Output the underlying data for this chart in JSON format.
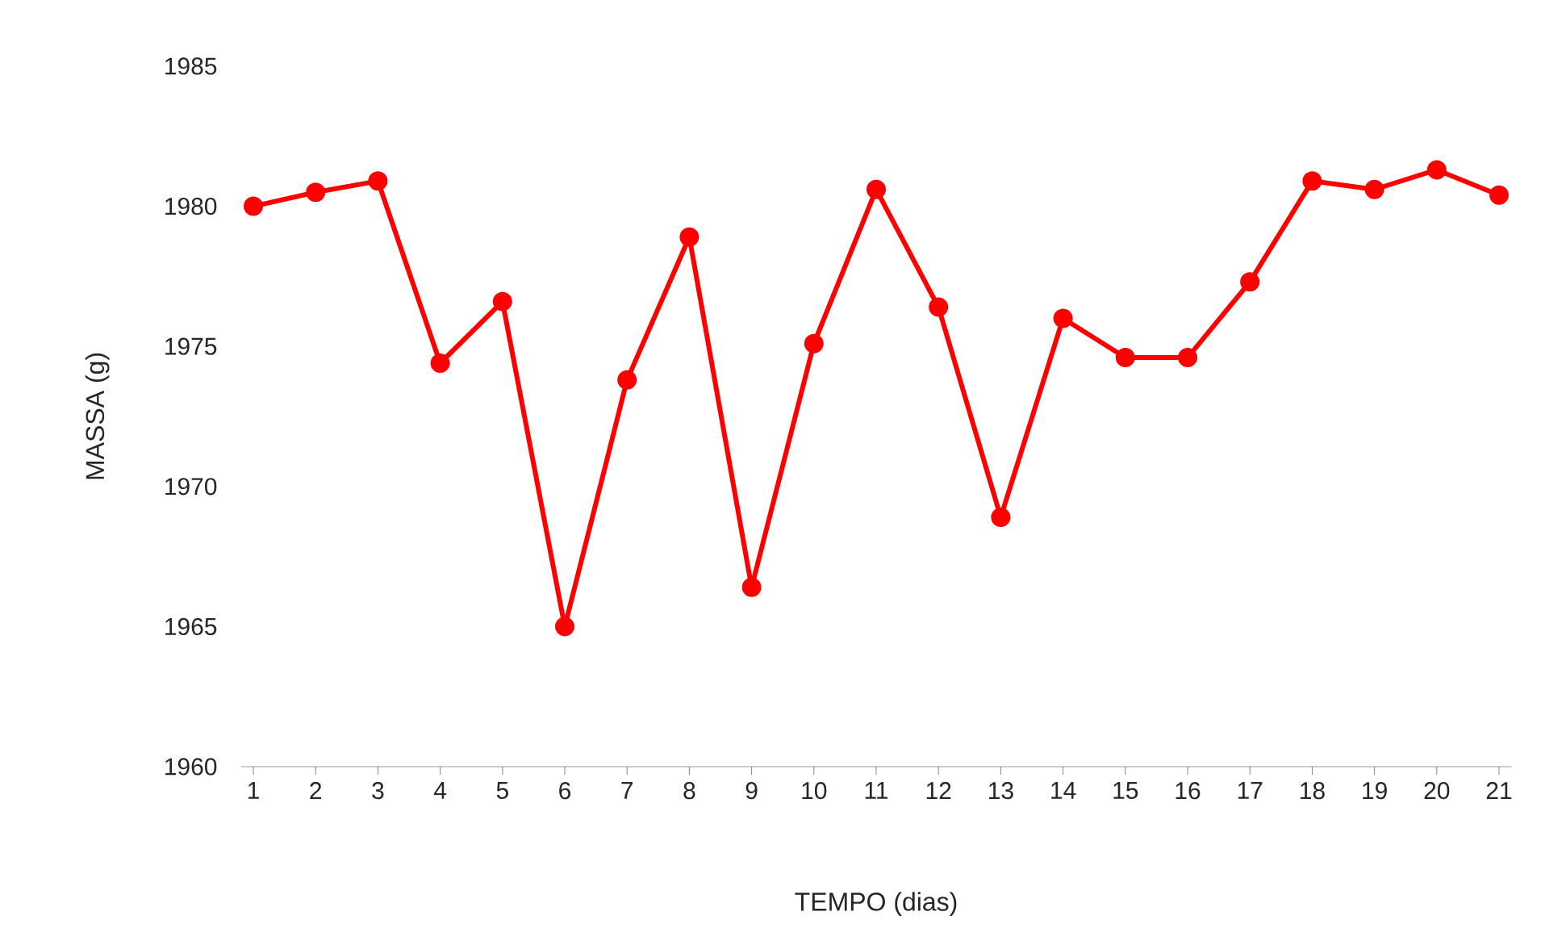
{
  "chart_data": {
    "type": "line",
    "xlabel": "TEMPO (dias)",
    "ylabel": "MASSA (g)",
    "categories": [
      "1",
      "2",
      "3",
      "4",
      "5",
      "6",
      "7",
      "8",
      "9",
      "10",
      "11",
      "12",
      "13",
      "14",
      "15",
      "16",
      "17",
      "18",
      "19",
      "20",
      "21"
    ],
    "series": [
      {
        "color": "#ff0000",
        "values": [
          1980.0,
          1980.5,
          1980.9,
          1974.4,
          1976.6,
          1965.0,
          1973.8,
          1978.9,
          1966.4,
          1975.1,
          1980.6,
          1976.4,
          1968.9,
          1976.0,
          1974.6,
          1974.6,
          1977.3,
          1980.9,
          1980.6,
          1981.3,
          1980.4
        ]
      }
    ],
    "ylim": [
      1960,
      1985
    ],
    "yticks": [
      1960,
      1965,
      1970,
      1975,
      1980,
      1985
    ],
    "marker": "circle",
    "line_style": "solid",
    "grid": false
  }
}
